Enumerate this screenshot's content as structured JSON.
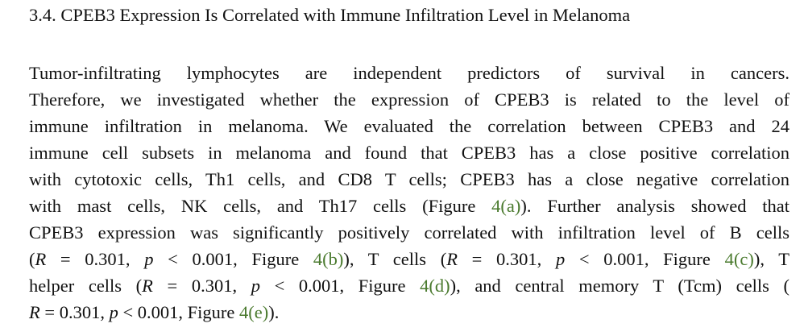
{
  "section": {
    "heading": "3.4. CPEB3 Expression Is Correlated with Immune Infiltration Level in Melanoma"
  },
  "paragraph": {
    "l1": "Tumor-infiltrating lymphocytes are independent predictors of survival in cancers.",
    "l2": "Therefore, we investigated whether the expression of CPEB3 is related to the level of",
    "l3": "immune infiltration in melanoma. We evaluated the correlation between CPEB3 and 24",
    "l4": "immune cell subsets in melanoma and found that CPEB3 has a close positive correlation",
    "l5": "with cytotoxic cells, Th1 cells, and CD8 T cells; CPEB3 has a close negative correlation",
    "l6a": "with mast cells, NK cells, and Th17 cells (Figure ",
    "l6link": "4(a)",
    "l6b": "). Further analysis showed that",
    "l7": "CPEB3 expression was significantly positively correlated with infiltration level of B cells",
    "l8a": "(",
    "R": "R",
    "eq": " = 0.301, ",
    "p": "p",
    "lt": " < 0.001, Figure ",
    "l8link1": "4(b)",
    "l8b": "), T cells (",
    "l8c": " = 0.301, ",
    "l8d": " < 0.001, Figure ",
    "l8link2": "4(c)",
    "l8e": "), T",
    "l9a": "helper cells (",
    "l9b": " = 0.301, ",
    "l9c": " < 0.001, Figure ",
    "l9link": "4(d)",
    "l9d": "), and central memory T (Tcm) cells (",
    "l10b": " = 0.301, ",
    "l10c": " < 0.001, Figure ",
    "l10link": "4(e)",
    "l10d": ")."
  }
}
